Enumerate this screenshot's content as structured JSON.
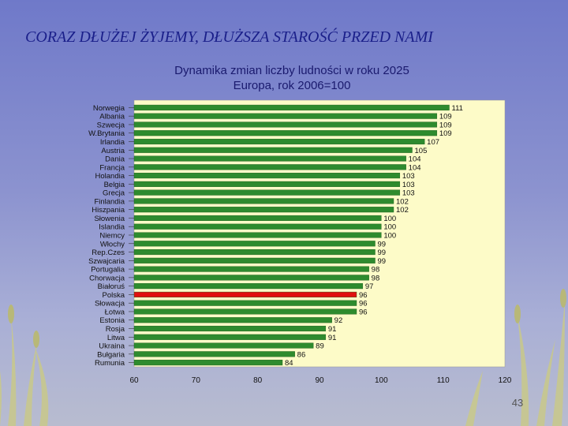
{
  "slide": {
    "title": "CORAZ DŁUŻEJ ŻYJEMY, DŁUŻSZA STAROŚĆ PRZED NAMI",
    "page_number": "43"
  },
  "colors": {
    "bar": "#2e8b2e",
    "highlight": "#e01010",
    "plot_bg": "#fdfbc8"
  },
  "chart_data": {
    "type": "bar",
    "orientation": "horizontal",
    "title": "Dynamika zmian liczby ludności w roku 2025",
    "subtitle": "Europa, rok 2006=100",
    "categories": [
      "Norwegia",
      "Albania",
      "Szwecja",
      "W.Brytania",
      "Irlandia",
      "Austria",
      "Dania",
      "Francja",
      "Holandia",
      "Belgia",
      "Grecja",
      "Finlandia",
      "Hiszpania",
      "Słowenia",
      "Islandia",
      "Niemcy",
      "Włochy",
      "Rep.Czes",
      "Szwajcaria",
      "Portugalia",
      "Chorwacja",
      "Białoruś",
      "Polska",
      "Słowacja",
      "Łotwa",
      "Estonia",
      "Rosja",
      "Litwa",
      "Ukraina",
      "Bułgaria",
      "Rumunia"
    ],
    "values": [
      111,
      109,
      109,
      109,
      107,
      105,
      104,
      104,
      103,
      103,
      103,
      102,
      102,
      100,
      100,
      100,
      99,
      99,
      99,
      98,
      98,
      97,
      96,
      96,
      96,
      92,
      91,
      91,
      89,
      86,
      84
    ],
    "value_labels": [
      "111",
      "109",
      "109",
      "109",
      "107",
      "105",
      "104",
      "104",
      "103",
      "103",
      "103",
      "102",
      "102",
      "100",
      "100",
      "100",
      "99",
      "99",
      "99",
      "98",
      "98",
      "97",
      "96",
      "96",
      "96",
      "92",
      "91",
      "91",
      "89",
      "86",
      "84"
    ],
    "highlight_category": "Polska",
    "xlim": [
      60,
      120
    ],
    "xticks": [
      "60",
      "70",
      "80",
      "90",
      "100",
      "110",
      "120"
    ],
    "xlabel": "",
    "ylabel": "",
    "grid": false
  }
}
